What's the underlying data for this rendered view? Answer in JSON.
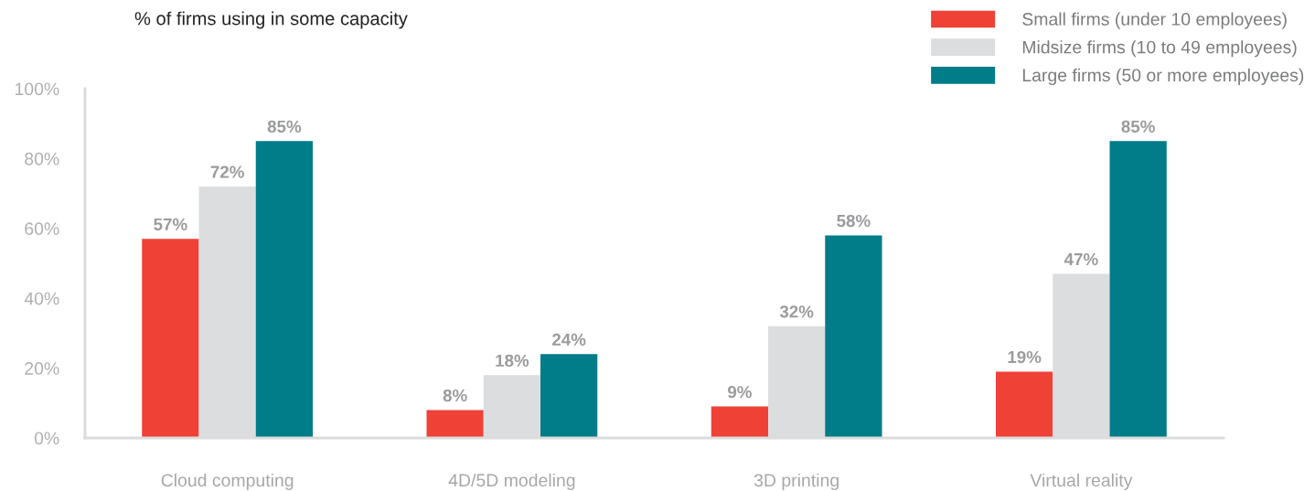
{
  "chart_data": {
    "type": "bar",
    "subtitle": "% of firms using in some capacity",
    "categories": [
      "Cloud computing",
      "4D/5D modeling",
      "3D printing",
      "Virtual reality"
    ],
    "series": [
      {
        "name": "Small firms (under 10 employees)",
        "color": "#ef4136",
        "values": [
          57,
          8,
          9,
          19
        ],
        "value_labels": [
          "57%",
          "8%",
          "9%",
          "19%"
        ]
      },
      {
        "name": "Midsize firms (10 to 49 employees)",
        "color": "#dcdddf",
        "values": [
          72,
          18,
          32,
          47
        ],
        "value_labels": [
          "72%",
          "18%",
          "32%",
          "47%"
        ]
      },
      {
        "name": "Large firms (50 or more employees)",
        "color": "#007d88",
        "values": [
          85,
          24,
          58,
          85
        ],
        "value_labels": [
          "85%",
          "24%",
          "58%",
          "85%"
        ]
      }
    ],
    "ylim": [
      0,
      100
    ],
    "yticks": [
      {
        "value": 0,
        "label": "0%"
      },
      {
        "value": 20,
        "label": "20%"
      },
      {
        "value": 40,
        "label": "40%"
      },
      {
        "value": 60,
        "label": "60%"
      },
      {
        "value": 80,
        "label": "80%"
      },
      {
        "value": 100,
        "label": "100%"
      }
    ],
    "grid": false,
    "legend": "top right"
  }
}
